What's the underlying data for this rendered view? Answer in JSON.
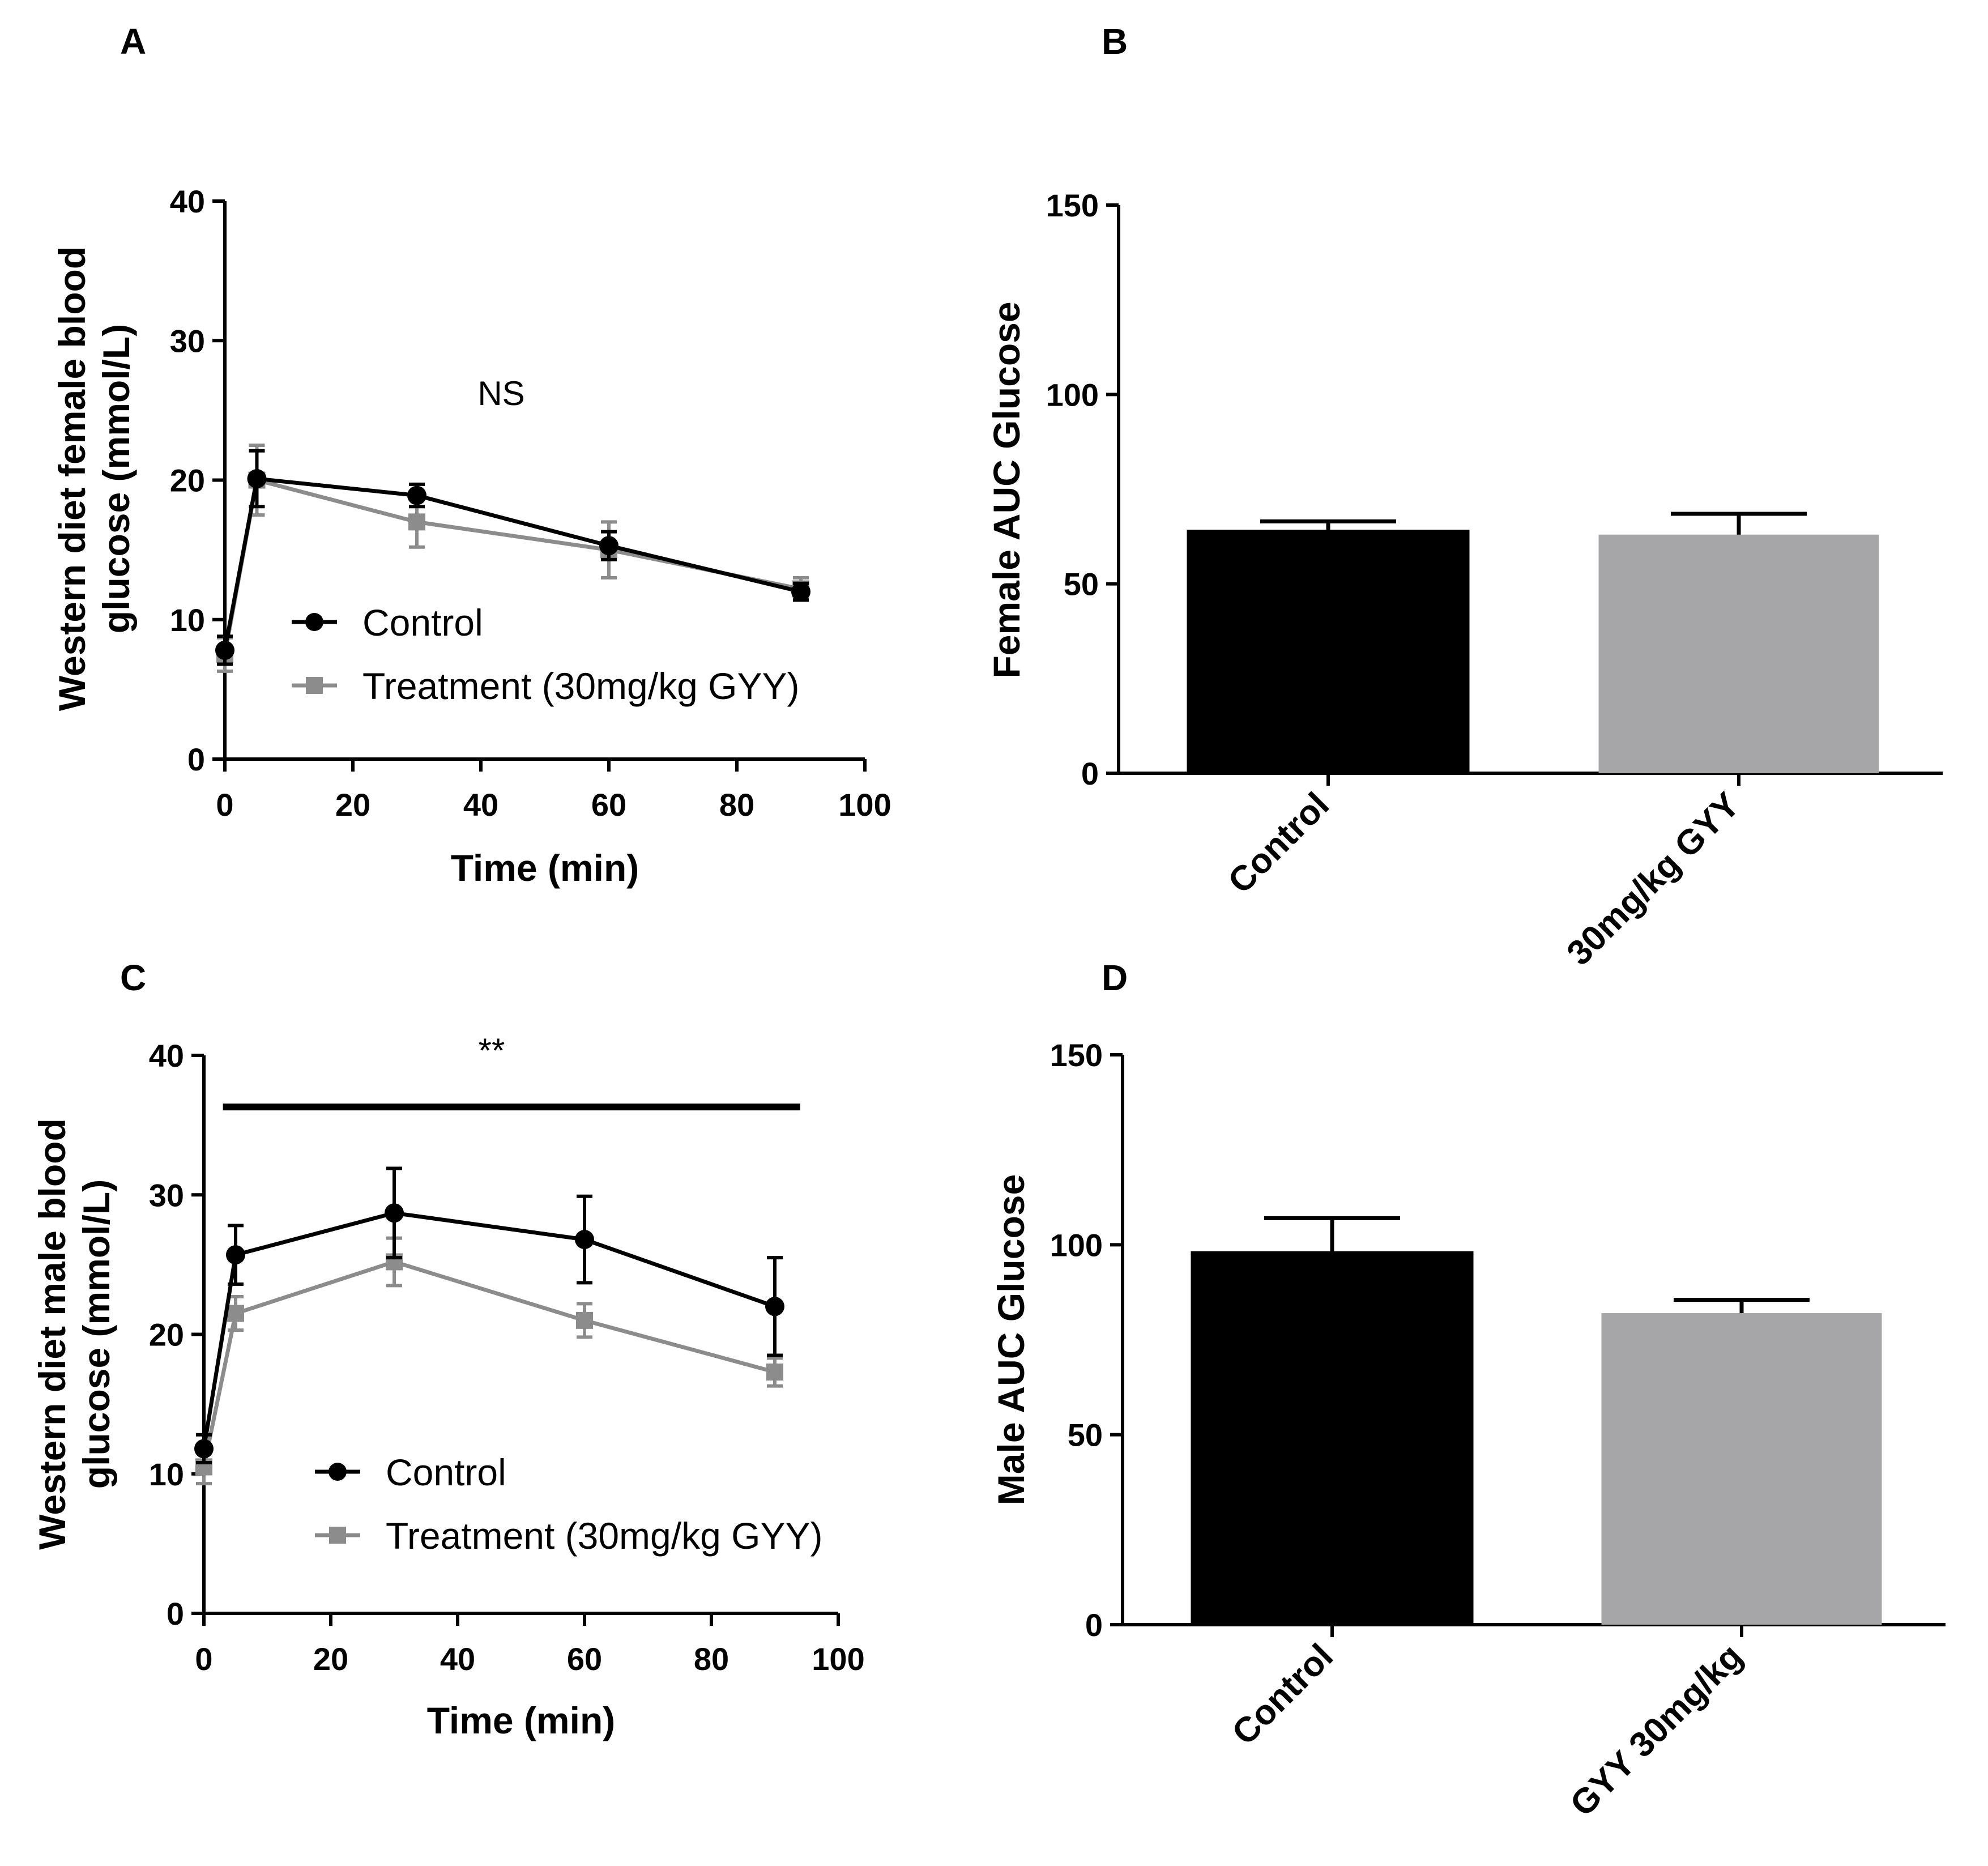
{
  "colors": {
    "control": "#000000",
    "treatment": "#8c8c8c",
    "treatment_bar": "#a6a6a8",
    "axis": "#000000"
  },
  "chart_data": [
    {
      "panel": "A",
      "type": "line",
      "title": "",
      "xlabel": "Time (min)",
      "ylabel": "Western diet female blood glucose (mmol/L)",
      "ylabel_lines": [
        "Western diet female blood",
        "glucose (mmol/L)"
      ],
      "xlim": [
        0,
        100
      ],
      "ylim": [
        0,
        40
      ],
      "xticks": [
        0,
        20,
        40,
        60,
        80,
        100
      ],
      "yticks": [
        0,
        10,
        20,
        30,
        40
      ],
      "annotation": "NS",
      "legend": "lower-left",
      "series": [
        {
          "name": "Control",
          "marker": "circle",
          "x": [
            0,
            5,
            30,
            60,
            90
          ],
          "y": [
            7.8,
            20.1,
            18.9,
            15.3,
            12.0
          ],
          "err": [
            1.0,
            2.0,
            0.8,
            1.0,
            0.6
          ]
        },
        {
          "name": "Treatment (30mg/kg GYY)",
          "marker": "square",
          "x": [
            0,
            5,
            30,
            60,
            90
          ],
          "y": [
            7.5,
            20.0,
            17.0,
            15.0,
            12.2
          ],
          "err": [
            1.2,
            2.5,
            1.8,
            2.0,
            0.8
          ]
        }
      ]
    },
    {
      "panel": "B",
      "type": "bar",
      "title": "",
      "xlabel": "",
      "ylabel": "Female AUC Glucose",
      "ylim": [
        0,
        150
      ],
      "yticks": [
        0,
        50,
        100,
        150
      ],
      "categories": [
        "Control",
        "30mg/kg GYY"
      ],
      "values": [
        64,
        63
      ],
      "errors": [
        2.5,
        5.5
      ]
    },
    {
      "panel": "C",
      "type": "line",
      "title": "",
      "xlabel": "Time (min)",
      "ylabel": "Western diet male blood glucose (mmol/L)",
      "ylabel_lines": [
        "Western diet male blood",
        "glucose (mmol/L)"
      ],
      "xlim": [
        0,
        100
      ],
      "ylim": [
        0,
        40
      ],
      "xticks": [
        0,
        20,
        40,
        60,
        80,
        100
      ],
      "yticks": [
        0,
        10,
        20,
        30,
        40
      ],
      "annotation": "**",
      "significance_span": [
        3,
        94
      ],
      "significance_y": 36.3,
      "legend": "lower-left",
      "series": [
        {
          "name": "Control",
          "marker": "circle",
          "x": [
            0,
            5,
            30,
            60,
            90
          ],
          "y": [
            11.8,
            25.7,
            28.7,
            26.8,
            22.0
          ],
          "err": [
            1.0,
            2.1,
            3.2,
            3.1,
            3.5
          ]
        },
        {
          "name": "Treatment (30mg/kg GYY)",
          "marker": "square",
          "x": [
            0,
            5,
            30,
            60,
            90
          ],
          "y": [
            10.5,
            21.5,
            25.2,
            21.0,
            17.3
          ],
          "err": [
            1.2,
            1.2,
            1.7,
            1.2,
            1.0
          ]
        }
      ]
    },
    {
      "panel": "D",
      "type": "bar",
      "title": "",
      "xlabel": "",
      "ylabel": "Male AUC Glucose",
      "ylim": [
        0,
        150
      ],
      "yticks": [
        0,
        50,
        100,
        150
      ],
      "categories": [
        "Control",
        "GYY 30mg/kg"
      ],
      "values": [
        98,
        82
      ],
      "errors": [
        9,
        3.5
      ]
    }
  ]
}
